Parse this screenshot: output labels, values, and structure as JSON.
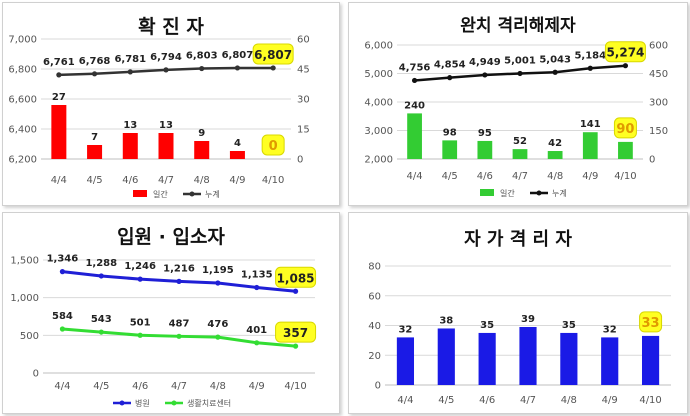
{
  "chart_data": [
    {
      "type": "bar+line",
      "title": "확 진 자",
      "categories": [
        "4/4",
        "4/5",
        "4/6",
        "4/7",
        "4/8",
        "4/9",
        "4/10"
      ],
      "series": [
        {
          "name": "일간",
          "kind": "bar",
          "axis": "right",
          "color": "#ff0000",
          "values": [
            27,
            7,
            13,
            13,
            9,
            4,
            0
          ]
        },
        {
          "name": "누계",
          "kind": "line",
          "axis": "left",
          "color": "#333333",
          "values": [
            6761,
            6768,
            6781,
            6794,
            6803,
            6807,
            6807
          ]
        }
      ],
      "left_axis": {
        "ticks": [
          "6,200",
          "6,400",
          "6,600",
          "6,800",
          "7,000"
        ],
        "min": 6200,
        "max": 7000
      },
      "right_axis": {
        "ticks": [
          "0",
          "15",
          "30",
          "45",
          "60"
        ],
        "min": 0,
        "max": 60
      },
      "bar_labels": [
        "27",
        "7",
        "13",
        "13",
        "9",
        "4",
        "0"
      ],
      "line_labels": [
        "6,761",
        "6,768",
        "6,781",
        "6,794",
        "6,803",
        "6,807",
        "6,807"
      ],
      "highlight_bar_last": true,
      "highlight_line_last": true,
      "legend": {
        "placement": "bottom"
      },
      "grid": true
    },
    {
      "type": "bar+line",
      "title": "완치 격리해제자",
      "categories": [
        "4/4",
        "4/5",
        "4/6",
        "4/7",
        "4/8",
        "4/9",
        "4/10"
      ],
      "series": [
        {
          "name": "일간",
          "kind": "bar",
          "axis": "right",
          "color": "#33cc33",
          "values": [
            240,
            98,
            95,
            52,
            42,
            141,
            90
          ]
        },
        {
          "name": "누계",
          "kind": "line",
          "axis": "left",
          "color": "#111111",
          "values": [
            4756,
            4854,
            4949,
            5001,
            5043,
            5184,
            5274
          ]
        }
      ],
      "left_axis": {
        "ticks": [
          "2,000",
          "3,000",
          "4,000",
          "5,000",
          "6,000"
        ],
        "min": 2000,
        "max": 6000
      },
      "right_axis": {
        "ticks": [
          "0",
          "150",
          "300",
          "450",
          "600"
        ],
        "min": 0,
        "max": 600
      },
      "bar_labels": [
        "240",
        "98",
        "95",
        "52",
        "42",
        "141",
        "90"
      ],
      "line_labels": [
        "4,756",
        "4,854",
        "4,949",
        "5,001",
        "5,043",
        "5,184",
        "5,274"
      ],
      "highlight_bar_last": true,
      "highlight_line_last": true,
      "legend": {
        "placement": "bottom"
      },
      "grid": true
    },
    {
      "type": "line",
      "title": "입원 · 입소자",
      "categories": [
        "4/4",
        "4/5",
        "4/6",
        "4/7",
        "4/8",
        "4/9",
        "4/10"
      ],
      "series": [
        {
          "name": "병원",
          "kind": "line",
          "axis": "left",
          "color": "#1f1fd6",
          "values": [
            1346,
            1288,
            1246,
            1216,
            1195,
            1135,
            1085
          ]
        },
        {
          "name": "생활치료센터",
          "kind": "line",
          "axis": "left",
          "color": "#33dd33",
          "values": [
            584,
            543,
            501,
            487,
            476,
            401,
            357
          ]
        }
      ],
      "left_axis": {
        "ticks": [
          "0",
          "500",
          "1,000",
          "1,500"
        ],
        "min": 0,
        "max": 1500
      },
      "series_labels": [
        [
          "1,346",
          "1,288",
          "1,246",
          "1,216",
          "1,195",
          "1,135",
          "1,085"
        ],
        [
          "584",
          "543",
          "501",
          "487",
          "476",
          "401",
          "357"
        ]
      ],
      "highlight_line_last": true,
      "legend": {
        "placement": "bottom"
      },
      "grid": true
    },
    {
      "type": "bar",
      "title": "자 가 격 리 자",
      "categories": [
        "4/4",
        "4/5",
        "4/6",
        "4/7",
        "4/8",
        "4/9",
        "4/10"
      ],
      "series": [
        {
          "name": "",
          "kind": "bar",
          "axis": "left",
          "color": "#1a1ae6",
          "values": [
            32,
            38,
            35,
            39,
            35,
            32,
            33
          ]
        }
      ],
      "left_axis": {
        "ticks": [
          "0",
          "20",
          "40",
          "60",
          "80"
        ],
        "min": 0,
        "max": 80
      },
      "bar_labels": [
        "32",
        "38",
        "35",
        "39",
        "35",
        "32",
        "33"
      ],
      "highlight_bar_last": true,
      "grid": true
    }
  ]
}
